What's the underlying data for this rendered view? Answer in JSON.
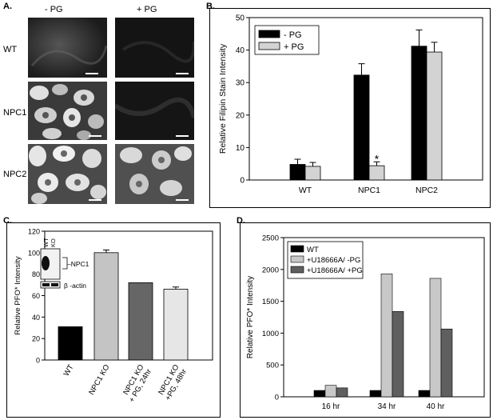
{
  "panel_a": {
    "label": "A.",
    "col_labels": [
      "- PG",
      "+ PG"
    ],
    "row_labels": [
      "WT",
      "NPC1",
      "NPC2"
    ]
  },
  "chart_data": [
    {
      "panel": "B.",
      "type": "bar",
      "ylabel": "Relative Filipin Stain Intensity",
      "ylim": [
        0,
        50
      ],
      "yticks": [
        0,
        10,
        20,
        30,
        40,
        50
      ],
      "categories": [
        "WT",
        "NPC1",
        "NPC2"
      ],
      "series": [
        {
          "name": "- PG",
          "color": "#000000",
          "values": [
            4.8,
            32.3,
            41.2
          ],
          "errors": [
            1.6,
            3.5,
            5.0
          ]
        },
        {
          "name": "+ PG",
          "color": "#d3d3d3",
          "values": [
            4.2,
            4.4,
            39.4
          ],
          "errors": [
            1.2,
            1.2,
            3.0
          ]
        }
      ],
      "annotations": [
        {
          "text": "*",
          "category": "NPC1",
          "series": "+ PG"
        }
      ],
      "legend": "top-left"
    },
    {
      "panel": "C.",
      "type": "bar",
      "ylabel": "Relative PFO* Intensity",
      "ylim": [
        0,
        120
      ],
      "yticks": [
        0,
        20,
        40,
        60,
        80,
        100,
        120
      ],
      "categories": [
        "WT",
        "NPC1 KO",
        "NPC1 KO\n+ PG, 24hr",
        "NPC1 KO\n+PG, 48hr"
      ],
      "values": [
        31,
        100,
        72,
        66
      ],
      "errors": [
        0,
        2.5,
        0,
        2.0
      ],
      "colors": [
        "#000000",
        "#c4c4c4",
        "#666666",
        "#e6e6e6"
      ],
      "inset": {
        "lane_labels": [
          "WT",
          "KO"
        ],
        "band_labels": [
          "NPC1",
          "β -actin"
        ]
      }
    },
    {
      "panel": "D.",
      "type": "bar",
      "ylabel": "Relative PFO* Intensity",
      "ylim": [
        0,
        2500
      ],
      "yticks": [
        0,
        500,
        1000,
        1500,
        2000,
        2500
      ],
      "categories": [
        "16 hr",
        "34 hr",
        "40 hr"
      ],
      "series": [
        {
          "name": "WT",
          "color": "#000000",
          "values": [
            100,
            100,
            100
          ]
        },
        {
          "name": "+U18666A/ -PG",
          "color": "#c8c8c8",
          "values": [
            180,
            1930,
            1860
          ]
        },
        {
          "name": "+U18666A/ +PG",
          "color": "#5f5f5f",
          "values": [
            140,
            1340,
            1065
          ]
        }
      ],
      "legend": "top-left"
    }
  ]
}
